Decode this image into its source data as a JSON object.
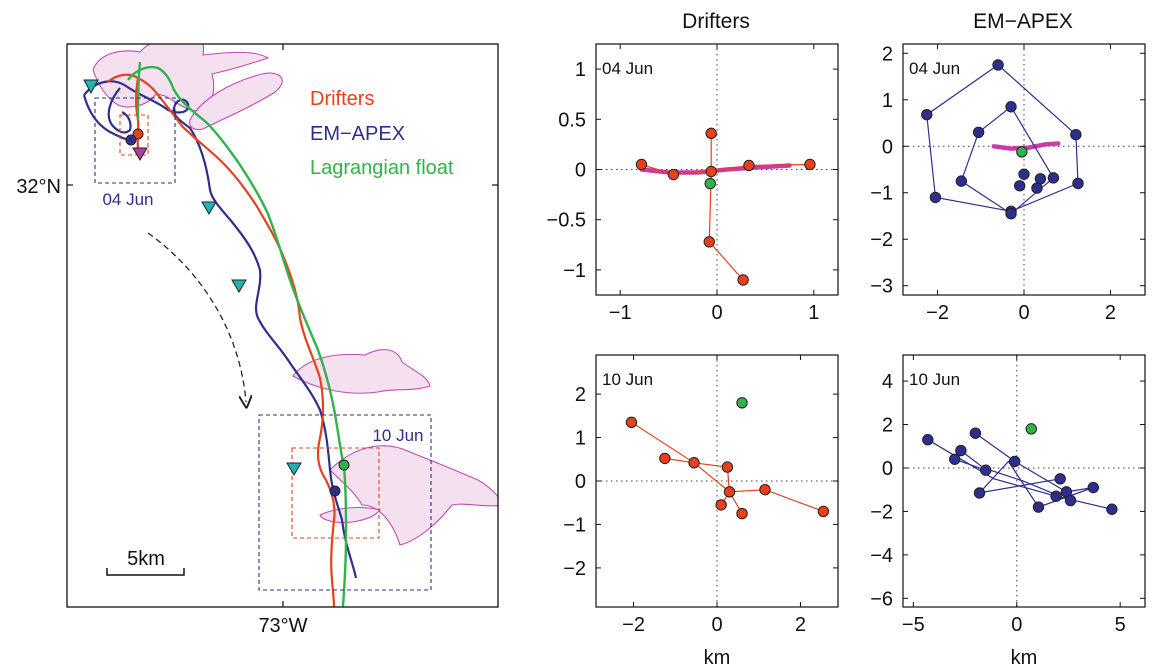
{
  "colors": {
    "drifters": "#e8401c",
    "emapex": "#2e2e8f",
    "float": "#2fb34a",
    "marker_cyan": "#1fb5b5",
    "marker_magenta": "#b23c9c",
    "patch_fill": "#f5dff0",
    "patch_stroke": "#c040b0",
    "float_track_scatter": "#c83ca8"
  },
  "column_titles": {
    "drifters": "Drifters",
    "emapex": "EM−APEX"
  },
  "map": {
    "lat_label": "32°N",
    "lon_label": "73°W",
    "scale_label": "5km",
    "box_label_early": "04 Jun",
    "box_label_late": "10 Jun",
    "legend": [
      "Drifters",
      "EM−APEX",
      "Lagrangian float"
    ]
  },
  "chart_data": [
    {
      "type": "scatter",
      "panel": "drifters-04jun",
      "title": "Drifters",
      "date_label": "04 Jun",
      "xlim": [
        -1.25,
        1.25
      ],
      "ylim": [
        -1.25,
        1.25
      ],
      "xticks": [
        -1,
        0,
        1
      ],
      "xtick_labels": [
        "−1",
        "0",
        "1"
      ],
      "yticks": [
        -1,
        -0.5,
        0,
        0.5,
        1
      ],
      "ytick_labels": [
        "−1",
        "−0.5",
        "0",
        "0.5",
        "1"
      ],
      "xlabel": "",
      "ylabel": "",
      "lines": [
        [
          [
            -0.78,
            0.05
          ],
          [
            -0.45,
            -0.05
          ],
          [
            -0.06,
            -0.02
          ],
          [
            0.33,
            0.04
          ],
          [
            0.96,
            0.05
          ]
        ],
        [
          [
            -0.06,
            0.36
          ],
          [
            -0.06,
            -0.02
          ],
          [
            -0.08,
            -0.72
          ],
          [
            0.27,
            -1.1
          ]
        ]
      ],
      "points": [
        [
          -0.78,
          0.05
        ],
        [
          -0.45,
          -0.05
        ],
        [
          -0.06,
          -0.02
        ],
        [
          0.33,
          0.04
        ],
        [
          0.96,
          0.05
        ],
        [
          -0.06,
          0.36
        ],
        [
          -0.08,
          -0.72
        ],
        [
          0.27,
          -1.1
        ]
      ],
      "float_point": [
        -0.07,
        -0.14
      ],
      "float_track": [
        [
          -0.78,
          0.0
        ],
        [
          -0.5,
          -0.03
        ],
        [
          -0.2,
          -0.03
        ],
        [
          0.1,
          0.0
        ],
        [
          0.4,
          0.02
        ],
        [
          0.75,
          0.04
        ]
      ]
    },
    {
      "type": "scatter",
      "panel": "emapex-04jun",
      "title": "EM−APEX",
      "date_label": "04 Jun",
      "xlim": [
        -2.8,
        2.8
      ],
      "ylim": [
        -3.2,
        2.2
      ],
      "xticks": [
        -2,
        0,
        2
      ],
      "xtick_labels": [
        "−2",
        "0",
        "2"
      ],
      "yticks": [
        -3,
        -2,
        -1,
        0,
        1,
        2
      ],
      "ytick_labels": [
        "−3",
        "−2",
        "−1",
        "0",
        "1",
        "2"
      ],
      "xlabel": "",
      "ylabel": "",
      "lines": [
        [
          [
            -0.6,
            1.75
          ],
          [
            -2.25,
            0.68
          ],
          [
            -2.05,
            -1.1
          ],
          [
            -0.3,
            -1.4
          ],
          [
            1.25,
            -0.8
          ],
          [
            1.2,
            0.25
          ],
          [
            -0.6,
            1.75
          ]
        ],
        [
          [
            -0.3,
            0.85
          ],
          [
            -1.05,
            0.3
          ],
          [
            -1.45,
            -0.75
          ],
          [
            -0.3,
            -1.45
          ],
          [
            0.68,
            -0.68
          ],
          [
            -0.3,
            0.85
          ]
        ]
      ],
      "points": [
        [
          -0.6,
          1.75
        ],
        [
          -2.25,
          0.68
        ],
        [
          -2.05,
          -1.1
        ],
        [
          -0.3,
          -1.4
        ],
        [
          1.25,
          -0.8
        ],
        [
          1.2,
          0.25
        ],
        [
          -0.3,
          0.85
        ],
        [
          -1.05,
          0.3
        ],
        [
          -1.45,
          -0.75
        ],
        [
          -0.3,
          -1.45
        ],
        [
          0.68,
          -0.68
        ],
        [
          0.0,
          -0.6
        ],
        [
          0.38,
          -0.7
        ],
        [
          -0.1,
          -0.85
        ],
        [
          0.3,
          -0.9
        ]
      ],
      "float_point": [
        -0.05,
        -0.12
      ],
      "float_track": [
        [
          -0.7,
          0.0
        ],
        [
          -0.3,
          -0.05
        ],
        [
          0.1,
          -0.03
        ],
        [
          0.5,
          0.04
        ],
        [
          0.8,
          0.06
        ]
      ]
    },
    {
      "type": "scatter",
      "panel": "drifters-10jun",
      "date_label": "10 Jun",
      "xlim": [
        -2.9,
        2.9
      ],
      "ylim": [
        -2.9,
        2.9
      ],
      "xticks": [
        -2,
        0,
        2
      ],
      "xtick_labels": [
        "−2",
        "0",
        "2"
      ],
      "yticks": [
        -2,
        -1,
        0,
        1,
        2
      ],
      "ytick_labels": [
        "−2",
        "−1",
        "0",
        "1",
        "2"
      ],
      "xlabel": "km",
      "ylabel": "",
      "lines": [
        [
          [
            -2.05,
            1.35
          ],
          [
            -0.55,
            0.42
          ],
          [
            0.3,
            -0.25
          ],
          [
            1.15,
            -0.2
          ],
          [
            2.55,
            -0.7
          ]
        ],
        [
          [
            -1.25,
            0.52
          ],
          [
            -0.55,
            0.42
          ],
          [
            0.25,
            0.32
          ],
          [
            0.3,
            -0.25
          ],
          [
            0.1,
            -0.55
          ],
          [
            0.3,
            -0.25
          ],
          [
            0.6,
            -0.75
          ]
        ]
      ],
      "points": [
        [
          -2.05,
          1.35
        ],
        [
          -1.25,
          0.52
        ],
        [
          -0.55,
          0.42
        ],
        [
          0.25,
          0.32
        ],
        [
          0.3,
          -0.25
        ],
        [
          1.15,
          -0.2
        ],
        [
          2.55,
          -0.7
        ],
        [
          0.1,
          -0.55
        ],
        [
          0.6,
          -0.75
        ]
      ],
      "float_point": [
        0.6,
        1.8
      ]
    },
    {
      "type": "scatter",
      "panel": "emapex-10jun",
      "date_label": "10 Jun",
      "xlim": [
        -5.5,
        6.2
      ],
      "ylim": [
        -6.4,
        5.2
      ],
      "xticks": [
        -5,
        0,
        5
      ],
      "xtick_labels": [
        "−5",
        "0",
        "5"
      ],
      "yticks": [
        -6,
        -4,
        -2,
        0,
        2,
        4
      ],
      "ytick_labels": [
        "−6",
        "−4",
        "−2",
        "0",
        "2",
        "4"
      ],
      "xlabel": "km",
      "ylabel": "",
      "lines": [
        [
          [
            -4.3,
            1.3
          ],
          [
            -1.1,
            -0.5
          ],
          [
            1.9,
            -1.3
          ],
          [
            4.6,
            -1.9
          ]
        ],
        [
          [
            -2.7,
            0.8
          ],
          [
            -1.6,
            0.0
          ],
          [
            0.3,
            -0.6
          ],
          [
            2.6,
            -1.5
          ]
        ],
        [
          [
            -2.0,
            1.6
          ],
          [
            -0.1,
            0.3
          ],
          [
            2.4,
            -1.1
          ],
          [
            3.7,
            -0.9
          ],
          [
            1.05,
            -1.8
          ],
          [
            -0.4,
            0.3
          ],
          [
            -1.8,
            -1.15
          ],
          [
            2.1,
            -0.5
          ]
        ],
        [
          [
            -3.0,
            0.4
          ],
          [
            -1.5,
            -0.1
          ]
        ]
      ],
      "points": [
        [
          -4.3,
          1.3
        ],
        [
          -2.7,
          0.8
        ],
        [
          -2.0,
          1.6
        ],
        [
          -3.0,
          0.4
        ],
        [
          -1.5,
          -0.1
        ],
        [
          -0.1,
          0.3
        ],
        [
          -1.8,
          -1.15
        ],
        [
          1.05,
          -1.8
        ],
        [
          1.9,
          -1.3
        ],
        [
          2.1,
          -0.5
        ],
        [
          2.4,
          -1.1
        ],
        [
          2.6,
          -1.5
        ],
        [
          3.7,
          -0.9
        ],
        [
          4.6,
          -1.9
        ]
      ],
      "float_point": [
        0.7,
        1.8
      ]
    }
  ]
}
